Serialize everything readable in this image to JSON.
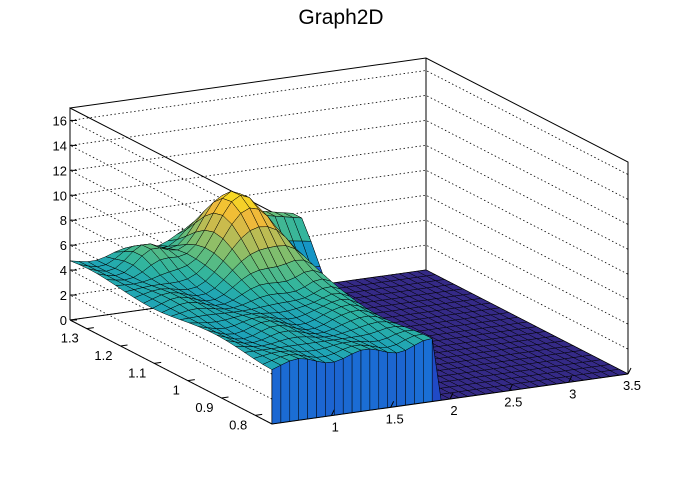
{
  "chart_data": {
    "type": "surface",
    "title": "Graph2D",
    "xlabel": "",
    "ylabel": "",
    "zlabel": "",
    "xlim": [
      0.5,
      3.5
    ],
    "ylim": [
      0.75,
      1.35
    ],
    "zlim": [
      0,
      17
    ],
    "x_ticks": [
      "1",
      "1.5",
      "2",
      "2.5",
      "3",
      "3.5"
    ],
    "y_ticks": [
      "0.8",
      "0.9",
      "1",
      "1.1",
      "1.2",
      "1.3"
    ],
    "z_ticks": [
      "0",
      "2",
      "4",
      "6",
      "8",
      "10",
      "12",
      "14",
      "16"
    ],
    "colormap": [
      "#352a87",
      "#1f4bc8",
      "#1a73d6",
      "#169bc4",
      "#2eb4a0",
      "#6cbf76",
      "#b5bc57",
      "#f0b93a",
      "#f9e01e"
    ],
    "grid": true,
    "plateau_region": {
      "x": [
        0.5,
        1.9
      ],
      "y": [
        0.75,
        1.35
      ]
    },
    "flat_region": {
      "x": [
        1.9,
        3.5
      ],
      "y": [
        0.75,
        1.2
      ],
      "z": 0
    },
    "peak": {
      "x": 1.5,
      "y": 1.2,
      "z": 10.5
    }
  }
}
